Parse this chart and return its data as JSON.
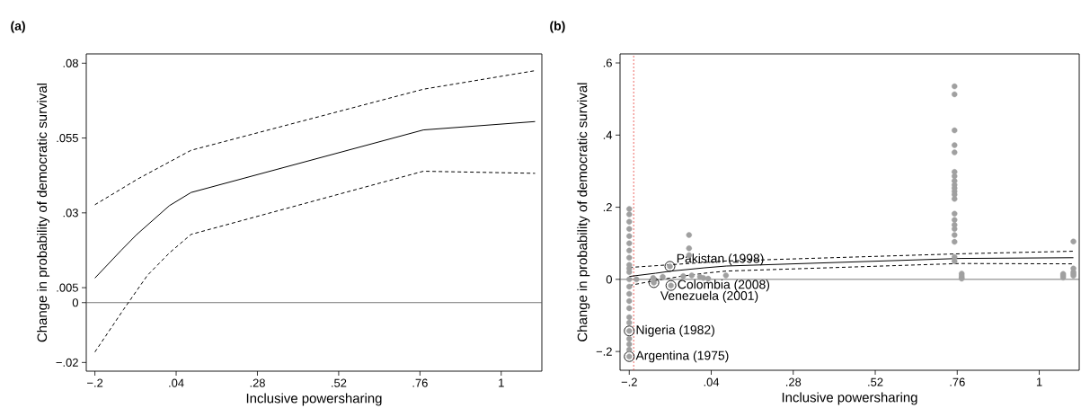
{
  "chart_data": [
    {
      "type": "line",
      "title": "(a)",
      "xlabel": "Inclusive powersharing",
      "ylabel": "Change in probability of democratic survival",
      "xlim": [
        -0.2255,
        1.12
      ],
      "ylim": [
        -0.0229,
        0.0831
      ],
      "xticks": [
        {
          "value": -0.2,
          "label": "−.2"
        },
        {
          "value": 0.04,
          "label": ".04"
        },
        {
          "value": 0.28,
          "label": ".28"
        },
        {
          "value": 0.52,
          "label": ".52"
        },
        {
          "value": 0.76,
          "label": ".76"
        },
        1
      ],
      "yticks": [
        {
          "value": -0.02,
          "label": "−.02"
        },
        0,
        {
          "value": 0.005,
          "label": ".005"
        },
        {
          "value": 0.03,
          "label": ".03"
        },
        {
          "value": 0.055,
          "label": ".055"
        },
        {
          "value": 0.08,
          "label": ".08"
        }
      ],
      "grid": false,
      "ref_lines": [
        {
          "axis": "y",
          "value": 0,
          "color": "#555555"
        }
      ],
      "series": [
        {
          "line_style": "solid",
          "color": "#000000",
          "x": [
            -0.2,
            -0.123,
            -0.077,
            0.02,
            0.084,
            0.77,
            1.1
          ],
          "values": [
            0.0082,
            0.0174,
            0.0227,
            0.0324,
            0.0368,
            0.0577,
            0.0605
          ]
        },
        {
          "line_style": "dashed",
          "color": "#000000",
          "x": [
            -0.2,
            -0.072,
            0.084,
            0.77,
            1.1
          ],
          "values": [
            0.0327,
            0.0414,
            0.0509,
            0.0713,
            0.0775
          ]
        },
        {
          "line_style": "dashed",
          "color": "#000000",
          "x": [
            -0.2,
            -0.116,
            -0.045,
            0.02,
            0.084,
            0.77,
            1.1
          ],
          "values": [
            -0.0165,
            -0.0024,
            0.0091,
            0.0166,
            0.0228,
            0.0439,
            0.0432
          ]
        }
      ]
    },
    {
      "type": "scatter",
      "title": "(b)",
      "xlabel": "Inclusive powersharing",
      "ylabel": "Change in probability of democratic survival",
      "xlim": [
        -0.227,
        1.117
      ],
      "ylim": [
        -0.252,
        0.625
      ],
      "xticks": [
        {
          "value": -0.2,
          "label": "−.2"
        },
        {
          "value": 0.04,
          "label": ".04"
        },
        {
          "value": 0.28,
          "label": ".28"
        },
        {
          "value": 0.52,
          "label": ".52"
        },
        {
          "value": 0.76,
          "label": ".76"
        },
        1
      ],
      "yticks": [
        {
          "value": -0.2,
          "label": "−.2"
        },
        0,
        {
          "value": 0.2,
          "label": ".2"
        },
        {
          "value": 0.4,
          "label": ".4"
        },
        {
          "value": 0.6,
          "label": ".6"
        }
      ],
      "grid": false,
      "ref_lines": [
        {
          "axis": "y",
          "value": 0,
          "color": "#555555"
        },
        {
          "axis": "x",
          "value": -0.187,
          "color": "#e8413c",
          "line_style": "dotted"
        }
      ],
      "annotations": [
        {
          "text": "Pakistan (1998)",
          "x": -0.081,
          "y": 0.036
        },
        {
          "text": "Colombia (2008)",
          "x": -0.078,
          "y": -0.017
        },
        {
          "text": "Venezuela (2001)",
          "x": -0.128,
          "y": -0.009
        },
        {
          "text": "Nigeria (1982)",
          "x": -0.2,
          "y": -0.143
        },
        {
          "text": "Argentina (1975)",
          "x": -0.2,
          "y": -0.214
        }
      ],
      "series": [
        {
          "color": "#a0a0a0",
          "x": [
            -0.2,
            -0.2,
            -0.2,
            -0.2,
            -0.2,
            -0.2,
            -0.2,
            -0.2,
            -0.2,
            -0.2,
            -0.2,
            -0.2,
            -0.2,
            -0.2,
            -0.2,
            -0.2,
            -0.2,
            -0.2,
            -0.2,
            -0.2,
            -0.2,
            -0.2,
            -0.2,
            -0.179,
            -0.13,
            -0.102,
            -0.081,
            -0.078,
            -0.128,
            -0.025,
            -0.025,
            -0.025,
            -0.042,
            -0.017,
            0.007,
            0.017,
            0.031,
            0.083,
            0.752,
            0.752,
            0.752,
            0.752,
            0.752,
            0.752,
            0.752,
            0.752,
            0.752,
            0.752,
            0.752,
            0.752,
            0.752,
            0.752,
            0.752,
            0.752,
            0.752,
            0.752,
            0.752,
            0.752,
            0.752,
            0.773,
            0.773,
            0.773,
            0.773,
            1.07,
            1.07,
            1.07,
            1.1,
            1.1,
            1.1,
            1.1,
            1.1
          ],
          "values": [
            -0.214,
            -0.195,
            -0.18,
            -0.165,
            -0.143,
            -0.12,
            -0.105,
            -0.08,
            -0.06,
            -0.04,
            -0.02,
            0,
            0.02,
            0.04,
            0.06,
            0.08,
            0.1,
            0.12,
            0.14,
            0.16,
            0.18,
            0.195,
            0.03,
            0,
            0.004,
            0.007,
            0.036,
            -0.017,
            -0.009,
            0.123,
            0.086,
            0.067,
            0.009,
            0.011,
            0.007,
            0.004,
            0.002,
            0.011,
            0.535,
            0.513,
            0.413,
            0.372,
            0.352,
            0.298,
            0.286,
            0.273,
            0.262,
            0.253,
            0.244,
            0.235,
            0.223,
            0.182,
            0.165,
            0.151,
            0.14,
            0.123,
            0.104,
            0.062,
            0.05,
            0.016,
            0.01,
            0.005,
            0.002,
            0.01,
            0.005,
            0.015,
            0.105,
            0.03,
            0.02,
            0.015,
            0.01
          ]
        },
        {
          "type": "line",
          "line_style": "solid",
          "color": "#000000",
          "x": [
            -0.2,
            -0.123,
            -0.077,
            0.02,
            0.084,
            0.77,
            1.1
          ],
          "values": [
            0.008,
            0.017,
            0.023,
            0.032,
            0.037,
            0.058,
            0.06
          ]
        },
        {
          "type": "line",
          "line_style": "dashed",
          "color": "#000000",
          "x": [
            -0.2,
            -0.072,
            0.084,
            0.77,
            1.1
          ],
          "values": [
            0.033,
            0.041,
            0.051,
            0.071,
            0.078
          ]
        },
        {
          "type": "line",
          "line_style": "dashed",
          "color": "#000000",
          "x": [
            -0.2,
            -0.116,
            -0.045,
            0.02,
            0.084,
            0.77,
            1.1
          ],
          "values": [
            -0.017,
            -0.002,
            0.009,
            0.017,
            0.023,
            0.044,
            0.043
          ]
        }
      ]
    }
  ]
}
